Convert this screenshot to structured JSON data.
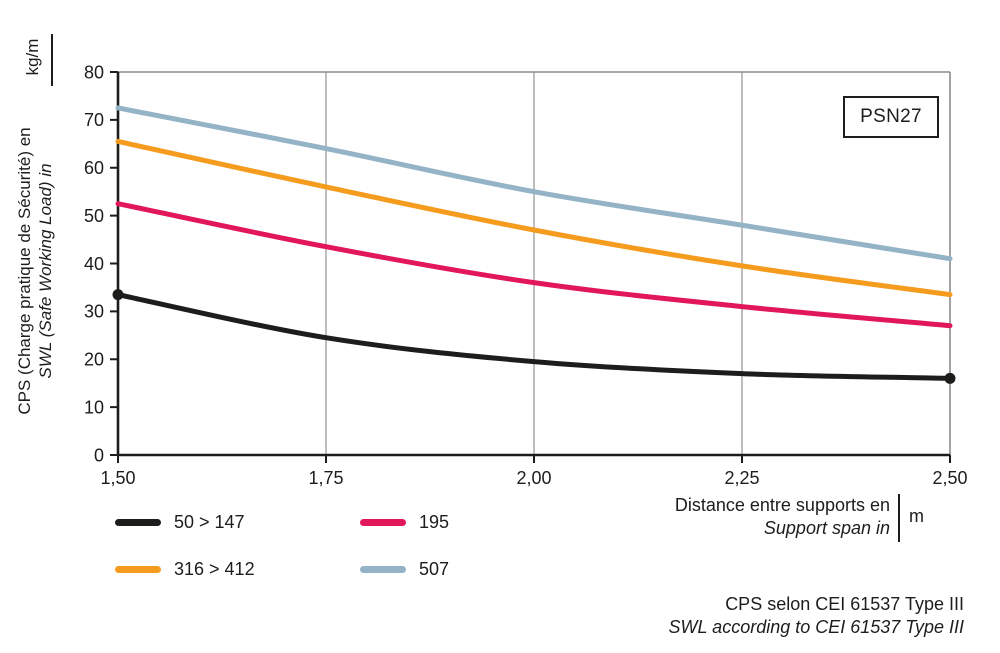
{
  "chart_data": {
    "type": "line",
    "annotation": "PSN27",
    "xlabel_fr": "Distance entre supports en",
    "xlabel_en": "Support span in",
    "x_unit": "m",
    "ylabel_fr": "CPS (Charge pratique de Sécurité) en",
    "ylabel_en": "SWL (Safe Working Load) in",
    "y_unit": "kg/m",
    "x": [
      1.5,
      1.75,
      2.0,
      2.25,
      2.5
    ],
    "x_tick_labels": [
      "1,50",
      "1,75",
      "2,00",
      "2,25",
      "2,50"
    ],
    "xlim": [
      1.5,
      2.5
    ],
    "ylim": [
      0,
      80
    ],
    "y_ticks": [
      0,
      10,
      20,
      30,
      40,
      50,
      60,
      70,
      80
    ],
    "grid": "vertical-only",
    "legend_position": "below",
    "series": [
      {
        "name": "50 > 147",
        "color": "#1d1d1b",
        "values": [
          33.5,
          24.5,
          19.5,
          17,
          16
        ],
        "endpoint_dots": true
      },
      {
        "name": "195",
        "color": "#e2175a",
        "values": [
          52.5,
          43.5,
          36,
          31,
          27
        ],
        "endpoint_dots": false
      },
      {
        "name": "316 > 412",
        "color": "#f59b1e",
        "values": [
          65.5,
          56,
          47,
          39.5,
          33.5
        ],
        "endpoint_dots": false
      },
      {
        "name": "507",
        "color": "#94b3c7",
        "values": [
          72.5,
          64,
          55,
          48,
          41
        ],
        "endpoint_dots": false
      }
    ]
  },
  "footnote": {
    "fr": "CPS selon CEI 61537 Type III",
    "en": "SWL according to CEI 61537 Type III"
  }
}
